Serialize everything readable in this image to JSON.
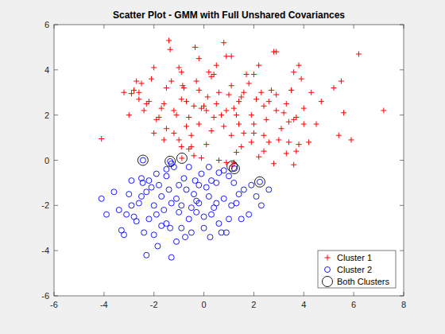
{
  "chart_data": {
    "type": "scatter",
    "title": "Scatter Plot - GMM with Full Unshared Covariances",
    "xlim": [
      -6,
      8
    ],
    "ylim": [
      -6,
      6
    ],
    "xticks": [
      -6,
      -4,
      -2,
      0,
      2,
      4,
      6,
      8
    ],
    "yticks": [
      -6,
      -4,
      -2,
      0,
      2,
      4,
      6
    ],
    "legend": "bottom-right",
    "series": [
      {
        "name": "Cluster 1",
        "color": "#ff0000",
        "marker": "plus",
        "x": [
          -4.1,
          -3.0,
          -2.8,
          -2.6,
          -2.5,
          -2.6,
          -2.3,
          -2.2,
          -2.1,
          -1.9,
          -1.8,
          -1.7,
          -1.5,
          -1.4,
          -1.35,
          -1.3,
          -1.2,
          -1.1,
          -1.0,
          -0.9,
          -0.85,
          -0.8,
          -0.7,
          -0.6,
          -0.5,
          -0.4,
          -0.3,
          -0.2,
          -0.1,
          0.0,
          0.1,
          0.15,
          0.2,
          0.3,
          0.4,
          0.5,
          0.6,
          0.7,
          0.8,
          0.9,
          1.0,
          1.1,
          1.2,
          1.3,
          1.4,
          1.5,
          1.6,
          1.7,
          1.8,
          1.9,
          2.0,
          2.1,
          2.2,
          2.3,
          2.4,
          2.5,
          2.6,
          2.7,
          2.8,
          2.9,
          3.0,
          3.1,
          3.2,
          3.3,
          3.4,
          3.5,
          3.6,
          3.7,
          3.8,
          3.9,
          4.0,
          4.2,
          4.5,
          5.2,
          5.5,
          5.6,
          5.9,
          6.2,
          7.2,
          5.4,
          3.6,
          3.7,
          2.8,
          2.4,
          2.2,
          1.5,
          1.3,
          0.9,
          0.6,
          0.1,
          -0.1,
          -0.4,
          -0.6,
          -0.9,
          -1.6,
          -1.2,
          -1.0,
          -0.5,
          1.9,
          2.6,
          3.3,
          0.3,
          0.8,
          1.1,
          1.6,
          2.0,
          -0.2,
          -0.7,
          -1.5,
          -2.0,
          -3.2,
          -2.9,
          -2.0,
          -1.6,
          -0.35,
          -0.2,
          0.5,
          1.1,
          2.0,
          2.9,
          3.6,
          3.8,
          4.3,
          4.7,
          4.0,
          3.4,
          2.9,
          2.4,
          1.4,
          0.9,
          0.4,
          -0.9,
          -2.4,
          -2.7,
          1.2,
          -0.88,
          1.13
        ],
        "values": [
          0.95,
          2.0,
          3.1,
          3.0,
          3.4,
          2.7,
          2.5,
          2.6,
          3.6,
          1.8,
          1.9,
          2.3,
          3.2,
          5.3,
          4.9,
          3.5,
          2.2,
          2.0,
          4.1,
          3.9,
          3.3,
          3.2,
          2.6,
          1.9,
          1.1,
          2.4,
          3.5,
          3.1,
          2.3,
          2.4,
          2.2,
          2.8,
          3.9,
          3.7,
          3.8,
          2.5,
          3.0,
          2.0,
          5.2,
          4.6,
          2.9,
          3.3,
          2.3,
          2.0,
          1.6,
          2.8,
          3.0,
          3.8,
          3.4,
          2.0,
          1.6,
          2.7,
          4.2,
          3.0,
          1.1,
          1.8,
          2.6,
          3.1,
          4.8,
          2.2,
          0.9,
          1.4,
          2.1,
          2.5,
          1.7,
          3.1,
          1.8,
          1.9,
          0.7,
          3.6,
          2.3,
          0.8,
          1.6,
          3.2,
          3.5,
          2.1,
          0.9,
          4.7,
          2.2,
          1.1,
          -0.2,
          0.4,
          -0.15,
          0.4,
          0.15,
          0.6,
          0.35,
          -0.1,
          0.0,
          0.7,
          0.1,
          0.2,
          0.5,
          0.6,
          0.9,
          1.2,
          0.9,
          0.6,
          0.8,
          0.8,
          0.3,
          1.3,
          1.5,
          1.1,
          1.2,
          1.2,
          1.6,
          1.5,
          1.4,
          1.2,
          3.0,
          2.95,
          4.1,
          2.5,
          5.0,
          4.5,
          4.2,
          4.6,
          3.8,
          4.8,
          3.9,
          4.2,
          3.0,
          2.6,
          1.6,
          0.8,
          2.9,
          2.4,
          2.6,
          2.2,
          1.9,
          2.7,
          2.2,
          3.5,
          -0.1,
          0.09,
          -0.26
        ]
      },
      {
        "name": "Cluster 2",
        "color": "#0000ff",
        "marker": "circle",
        "x": [
          -4.1,
          -3.9,
          -3.6,
          -3.4,
          -3.3,
          -3.2,
          -3.1,
          -3.0,
          -2.9,
          -2.8,
          -2.7,
          -2.6,
          -2.5,
          -2.5,
          -2.45,
          -2.4,
          -2.3,
          -2.2,
          -2.1,
          -2.0,
          -1.9,
          -1.85,
          -1.8,
          -1.7,
          -1.6,
          -1.5,
          -1.4,
          -1.35,
          -1.3,
          -1.2,
          -1.1,
          -1.0,
          -0.9,
          -0.8,
          -0.75,
          -0.7,
          -0.6,
          -0.5,
          -0.4,
          -0.35,
          -0.3,
          -0.2,
          -0.1,
          0.0,
          0.1,
          0.2,
          0.25,
          0.3,
          0.4,
          0.5,
          0.6,
          0.7,
          0.8,
          0.9,
          1.0,
          1.1,
          1.2,
          1.4,
          1.5,
          1.6,
          1.8,
          2.1,
          2.3,
          2.6,
          -1.9,
          -2.2,
          -1.5,
          -0.6,
          0.2,
          0.6,
          -1.0,
          -0.2,
          0.5,
          -0.5,
          -1.3,
          -2.3,
          -2.9,
          -1.7,
          -0.9,
          0.0,
          1.0,
          -1.1,
          -2.0,
          0.3,
          -0.3,
          1.3,
          -1.5,
          -1.3,
          0.8,
          1.9,
          -2.44,
          -1.35,
          1.22,
          2.24
        ],
        "values": [
          -1.7,
          -2.4,
          -1.4,
          -2.2,
          -3.1,
          -3.3,
          -2.4,
          -1.5,
          -2.0,
          -2.5,
          -2.7,
          -1.9,
          -1.6,
          -0.8,
          -1.0,
          -3.2,
          -4.2,
          -2.6,
          -1.2,
          -2.0,
          -2.4,
          -3.8,
          -1.1,
          -1.6,
          -2.2,
          -2.8,
          -1.3,
          -3.0,
          -4.3,
          -0.3,
          -1.7,
          -2.3,
          -2.0,
          -0.8,
          -3.4,
          -1.3,
          -2.6,
          -3.2,
          -1.5,
          -0.9,
          -2.3,
          -1.9,
          -0.6,
          -2.5,
          -1.2,
          -1.6,
          -3.4,
          -0.9,
          -2.1,
          -1.0,
          -2.8,
          -3.2,
          -1.7,
          -3.2,
          -0.7,
          -2.0,
          -1.0,
          -1.5,
          -2.6,
          -1.3,
          -2.4,
          -1.6,
          -2.0,
          -1.3,
          -0.6,
          -0.9,
          -0.7,
          -0.3,
          -0.3,
          -0.55,
          -1.1,
          -1.1,
          -1.9,
          -2.1,
          -1.9,
          -1.4,
          -0.9,
          -2.9,
          -3.0,
          -3.0,
          -2.6,
          -3.6,
          -3.3,
          -2.4,
          -1.8,
          -1.9,
          -0.4,
          -0.15,
          -0.45,
          -1.1,
          0.0,
          -0.05,
          -0.37,
          -0.96
        ]
      },
      {
        "name": "Both Clusters",
        "color": "#000000",
        "marker": "ring",
        "x": [
          -2.44,
          -1.35,
          -0.88,
          1.13,
          1.22,
          2.24
        ],
        "values": [
          0.0,
          -0.05,
          0.09,
          -0.26,
          -0.37,
          -0.96
        ]
      }
    ]
  }
}
